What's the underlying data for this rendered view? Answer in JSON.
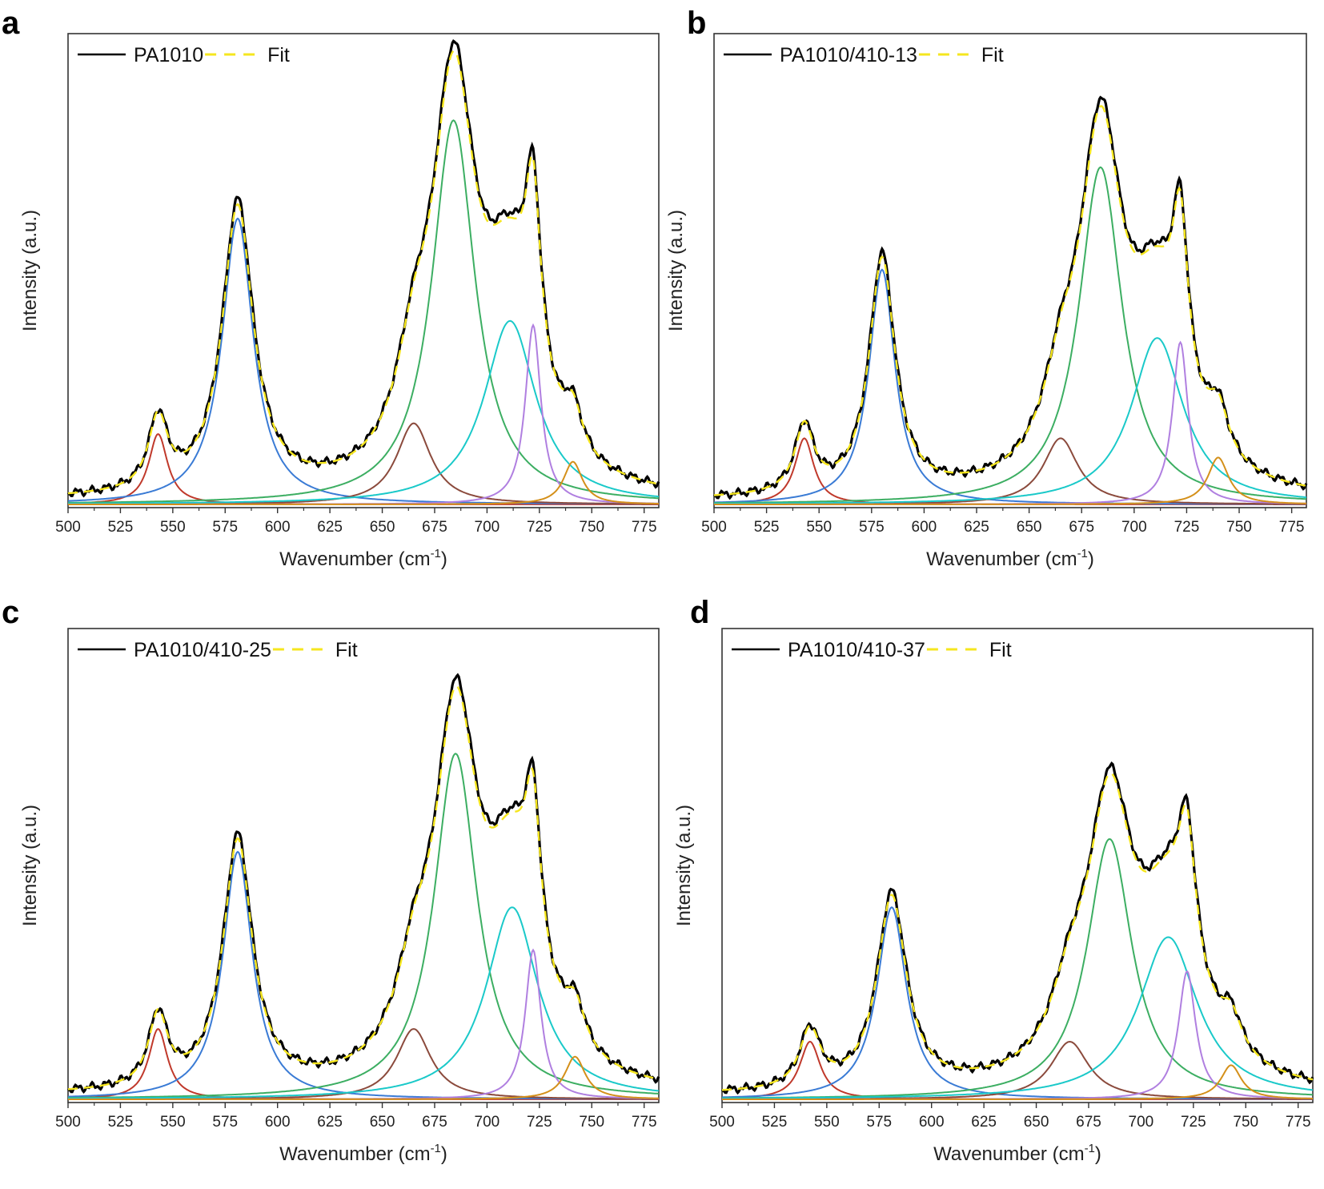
{
  "chart_data": [
    {
      "type": "line",
      "panel": "a",
      "legend": [
        {
          "label": "PA1010",
          "color": "#000000"
        },
        {
          "label": "Fit",
          "color": "#f5e61e"
        }
      ],
      "xlabel": "Wavenumber (cm",
      "xlabel_sup": "-1",
      "xlabel_close": ")",
      "ylabel": "Intensity (a.u.)",
      "xlim": [
        500,
        782
      ],
      "ylim": [
        0,
        1.0
      ],
      "xticks": [
        500,
        525,
        550,
        575,
        600,
        625,
        650,
        675,
        700,
        725,
        750,
        775
      ],
      "peaks": [
        {
          "name": "peak-543",
          "center": 543,
          "width": 5.5,
          "height": 0.165,
          "color": "#c0392b"
        },
        {
          "name": "peak-581",
          "center": 581,
          "width": 9,
          "height": 0.67,
          "color": "#3a7bd5"
        },
        {
          "name": "peak-665",
          "center": 665,
          "width": 10,
          "height": 0.19,
          "color": "#8b4a3c"
        },
        {
          "name": "peak-684",
          "center": 684,
          "width": 12.5,
          "height": 0.9,
          "color": "#3cae62"
        },
        {
          "name": "peak-711",
          "center": 711,
          "width": 15,
          "height": 0.43,
          "color": "#1ac9c9"
        },
        {
          "name": "peak-722",
          "center": 722,
          "width": 4.5,
          "height": 0.42,
          "color": "#b07fe0"
        },
        {
          "name": "peak-741",
          "center": 741,
          "width": 5.5,
          "height": 0.1,
          "color": "#d4901a"
        }
      ]
    },
    {
      "type": "line",
      "panel": "b",
      "legend": [
        {
          "label": "PA1010/410-13",
          "color": "#000000"
        },
        {
          "label": "Fit",
          "color": "#f5e61e"
        }
      ],
      "xlabel": "Wavenumber (cm",
      "xlabel_sup": "-1",
      "xlabel_close": ")",
      "ylabel": "Intensity (a.u.)",
      "xlim": [
        500,
        782
      ],
      "ylim": [
        0,
        1.0
      ],
      "xticks": [
        500,
        525,
        550,
        575,
        600,
        625,
        650,
        675,
        700,
        725,
        750,
        775
      ],
      "peaks": [
        {
          "name": "peak-543",
          "center": 543,
          "width": 5.5,
          "height": 0.155,
          "color": "#c0392b"
        },
        {
          "name": "peak-580",
          "center": 580,
          "width": 7.5,
          "height": 0.55,
          "color": "#3a7bd5"
        },
        {
          "name": "peak-665",
          "center": 665,
          "width": 10,
          "height": 0.155,
          "color": "#8b4a3c"
        },
        {
          "name": "peak-684",
          "center": 684,
          "width": 12.5,
          "height": 0.79,
          "color": "#3cae62"
        },
        {
          "name": "peak-711",
          "center": 711,
          "width": 15,
          "height": 0.39,
          "color": "#1ac9c9"
        },
        {
          "name": "peak-722",
          "center": 722,
          "width": 4.5,
          "height": 0.38,
          "color": "#b07fe0"
        },
        {
          "name": "peak-740",
          "center": 740,
          "width": 6,
          "height": 0.11,
          "color": "#d4901a"
        }
      ]
    },
    {
      "type": "line",
      "panel": "c",
      "legend": [
        {
          "label": "PA1010/410-25",
          "color": "#000000"
        },
        {
          "label": "Fit",
          "color": "#f5e61e"
        }
      ],
      "xlabel": "Wavenumber (cm",
      "xlabel_sup": "-1",
      "xlabel_close": ")",
      "ylabel": "Intensity (a.u.)",
      "xlim": [
        500,
        782
      ],
      "ylim": [
        0,
        1.0
      ],
      "xticks": [
        500,
        525,
        550,
        575,
        600,
        625,
        650,
        675,
        700,
        725,
        750,
        775
      ],
      "peaks": [
        {
          "name": "peak-543",
          "center": 543,
          "width": 5.5,
          "height": 0.165,
          "color": "#c0392b"
        },
        {
          "name": "peak-581",
          "center": 581,
          "width": 8.5,
          "height": 0.58,
          "color": "#3a7bd5"
        },
        {
          "name": "peak-665",
          "center": 665,
          "width": 10,
          "height": 0.165,
          "color": "#8b4a3c"
        },
        {
          "name": "peak-685",
          "center": 685,
          "width": 12.5,
          "height": 0.81,
          "color": "#3cae62"
        },
        {
          "name": "peak-712",
          "center": 712,
          "width": 15,
          "height": 0.45,
          "color": "#1ac9c9"
        },
        {
          "name": "peak-722",
          "center": 722,
          "width": 4.5,
          "height": 0.35,
          "color": "#b07fe0"
        },
        {
          "name": "peak-742",
          "center": 742,
          "width": 6,
          "height": 0.1,
          "color": "#d4901a"
        }
      ]
    },
    {
      "type": "line",
      "panel": "d",
      "legend": [
        {
          "label": "PA1010/410-37",
          "color": "#000000"
        },
        {
          "label": "Fit",
          "color": "#f5e61e"
        }
      ],
      "xlabel": "Wavenumber (cm",
      "xlabel_sup": "-1",
      "xlabel_close": ")",
      "ylabel": "Intensity (a.u.)",
      "xlim": [
        500,
        782
      ],
      "ylim": [
        0,
        1.0
      ],
      "xticks": [
        500,
        525,
        550,
        575,
        600,
        625,
        650,
        675,
        700,
        725,
        750,
        775
      ],
      "peaks": [
        {
          "name": "peak-542",
          "center": 542,
          "width": 6,
          "height": 0.135,
          "color": "#c0392b"
        },
        {
          "name": "peak-581",
          "center": 581,
          "width": 8.5,
          "height": 0.45,
          "color": "#3a7bd5"
        },
        {
          "name": "peak-666",
          "center": 666,
          "width": 11,
          "height": 0.135,
          "color": "#8b4a3c"
        },
        {
          "name": "peak-685",
          "center": 685,
          "width": 13,
          "height": 0.61,
          "color": "#3cae62"
        },
        {
          "name": "peak-713",
          "center": 713,
          "width": 17,
          "height": 0.38,
          "color": "#1ac9c9"
        },
        {
          "name": "peak-722",
          "center": 722,
          "width": 5,
          "height": 0.3,
          "color": "#b07fe0"
        },
        {
          "name": "peak-743",
          "center": 743,
          "width": 6,
          "height": 0.08,
          "color": "#d4901a"
        }
      ]
    }
  ]
}
